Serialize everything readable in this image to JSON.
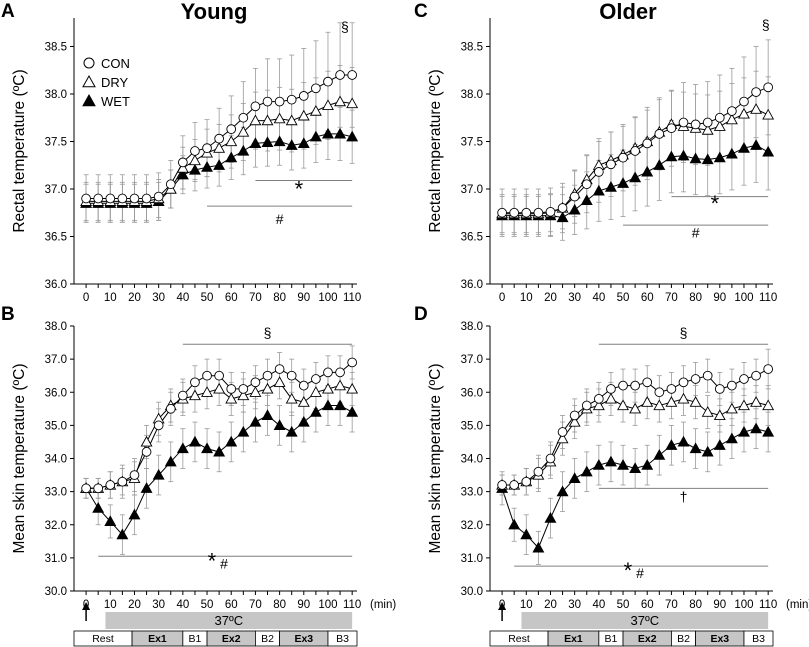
{
  "chart_data": {
    "type": "line",
    "x": [
      0,
      5,
      10,
      15,
      20,
      25,
      30,
      35,
      40,
      45,
      50,
      55,
      60,
      65,
      70,
      75,
      80,
      85,
      90,
      95,
      100,
      105,
      110
    ],
    "x_unit": "(min)",
    "xlim": [
      -5,
      112
    ],
    "legend": [
      "CON",
      "DRY",
      "WET"
    ],
    "temp_bar_label": "37ºC",
    "phases": [
      {
        "label": "Rest",
        "bold": false
      },
      {
        "label": "Ex1",
        "bold": true
      },
      {
        "label": "B1",
        "bold": false
      },
      {
        "label": "Ex2",
        "bold": true
      },
      {
        "label": "B2",
        "bold": false
      },
      {
        "label": "Ex3",
        "bold": true
      },
      {
        "label": "B3",
        "bold": false
      }
    ],
    "columns": [
      {
        "title": "Young",
        "panels": [
          "A",
          "B"
        ]
      },
      {
        "title": "Older",
        "panels": [
          "C",
          "D"
        ]
      }
    ],
    "panels": [
      {
        "id": "A",
        "ylabel": "Rectal temperature (ºC)",
        "ylim": [
          36.0,
          38.8
        ],
        "yticks": [
          "36.0",
          "36.5",
          "37.0",
          "37.5",
          "38.0",
          "38.5"
        ],
        "yvals": [
          36.0,
          36.5,
          37.0,
          37.5,
          38.0,
          38.5
        ],
        "series": [
          {
            "name": "CON",
            "values": [
              36.9,
              36.9,
              36.9,
              36.9,
              36.9,
              36.9,
              36.92,
              37.05,
              37.28,
              37.4,
              37.43,
              37.53,
              37.63,
              37.75,
              37.87,
              37.92,
              37.92,
              37.94,
              37.98,
              38.06,
              38.13,
              38.2,
              38.2
            ],
            "err": [
              0.25,
              0.25,
              0.25,
              0.25,
              0.25,
              0.25,
              0.25,
              0.25,
              0.28,
              0.3,
              0.3,
              0.32,
              0.35,
              0.38,
              0.4,
              0.45,
              0.45,
              0.47,
              0.5,
              0.5,
              0.52,
              0.55,
              0.55
            ]
          },
          {
            "name": "DRY",
            "values": [
              36.87,
              36.87,
              36.87,
              36.87,
              36.87,
              36.87,
              36.9,
              37.0,
              37.22,
              37.3,
              37.38,
              37.43,
              37.5,
              37.6,
              37.72,
              37.72,
              37.74,
              37.72,
              37.77,
              37.82,
              37.88,
              37.92,
              37.9
            ],
            "err": [
              0.2,
              0.2,
              0.2,
              0.2,
              0.2,
              0.2,
              0.2,
              0.2,
              0.22,
              0.22,
              0.25,
              0.25,
              0.28,
              0.3,
              0.3,
              0.32,
              0.33,
              0.33,
              0.35,
              0.35,
              0.36,
              0.38,
              0.38
            ]
          },
          {
            "name": "WET",
            "values": [
              36.85,
              36.85,
              36.85,
              36.85,
              36.85,
              36.85,
              36.87,
              37.0,
              37.15,
              37.2,
              37.23,
              37.25,
              37.33,
              37.4,
              37.48,
              37.49,
              37.5,
              37.46,
              37.48,
              37.55,
              37.58,
              37.58,
              37.55
            ],
            "err": [
              0.2,
              0.2,
              0.2,
              0.2,
              0.2,
              0.2,
              0.2,
              0.2,
              0.2,
              0.22,
              0.22,
              0.22,
              0.23,
              0.25,
              0.25,
              0.25,
              0.25,
              0.26,
              0.26,
              0.27,
              0.27,
              0.28,
              0.28
            ]
          }
        ],
        "annotations": [
          {
            "text": "§",
            "x": 107,
            "y": 38.66,
            "size": "small"
          },
          {
            "text": "*",
            "x": 88,
            "y": 36.92,
            "size": "big"
          },
          {
            "text": "#",
            "x": 80,
            "y": 36.63,
            "size": "small"
          }
        ],
        "lines": [
          {
            "x1": 70,
            "x2": 110,
            "y": 37.09
          },
          {
            "x1": 50,
            "x2": 110,
            "y": 36.82
          }
        ],
        "show_legend": true
      },
      {
        "id": "B",
        "ylabel": "Mean skin temperature (ºC)",
        "ylim": [
          30.0,
          38.0
        ],
        "yticks": [
          "30.0",
          "31.0",
          "32.0",
          "33.0",
          "34.0",
          "35.0",
          "36.0",
          "37.0",
          "38.0"
        ],
        "yvals": [
          30,
          31,
          32,
          33,
          34,
          35,
          36,
          37,
          38
        ],
        "series": [
          {
            "name": "CON",
            "values": [
              33.1,
              33.1,
              33.2,
              33.3,
              33.5,
              34.2,
              35.0,
              35.5,
              35.9,
              36.3,
              36.5,
              36.5,
              36.1,
              36.1,
              36.3,
              36.5,
              36.7,
              36.5,
              36.2,
              36.4,
              36.6,
              36.6,
              36.9
            ],
            "err": [
              0.3,
              0.3,
              0.4,
              0.5,
              0.5,
              0.5,
              0.5,
              0.5,
              0.5,
              0.5,
              0.5,
              0.5,
              0.5,
              0.5,
              0.5,
              0.5,
              0.5,
              0.5,
              0.5,
              0.5,
              0.5,
              0.5,
              0.5
            ]
          },
          {
            "name": "DRY",
            "values": [
              33.1,
              33.1,
              33.2,
              33.3,
              33.4,
              34.5,
              35.2,
              35.6,
              35.8,
              35.9,
              36.0,
              36.1,
              35.8,
              35.9,
              36.0,
              36.1,
              36.3,
              35.8,
              35.7,
              36.0,
              36.1,
              36.2,
              36.1
            ],
            "err": [
              0.3,
              0.3,
              0.4,
              0.4,
              0.5,
              0.5,
              0.5,
              0.5,
              0.5,
              0.5,
              0.5,
              0.5,
              0.5,
              0.5,
              0.5,
              0.5,
              0.5,
              0.5,
              0.5,
              0.5,
              0.5,
              0.5,
              0.5
            ]
          },
          {
            "name": "WET",
            "values": [
              33.1,
              32.5,
              32.1,
              31.7,
              32.3,
              33.1,
              33.5,
              33.9,
              34.3,
              34.5,
              34.3,
              34.2,
              34.5,
              34.8,
              35.1,
              35.3,
              35.0,
              34.8,
              35.1,
              35.4,
              35.6,
              35.6,
              35.4
            ],
            "err": [
              0.3,
              0.5,
              0.5,
              0.6,
              0.6,
              0.6,
              0.6,
              0.6,
              0.6,
              0.6,
              0.6,
              0.6,
              0.6,
              0.6,
              0.6,
              0.6,
              0.6,
              0.6,
              0.6,
              0.6,
              0.6,
              0.6,
              0.6
            ]
          }
        ],
        "annotations": [
          {
            "text": "§",
            "x": 75,
            "y": 37.65,
            "size": "small"
          },
          {
            "text": "*",
            "x": 52,
            "y": 30.68,
            "size": "big"
          },
          {
            "text": "#",
            "x": 57,
            "y": 30.68,
            "size": "small"
          }
        ],
        "lines": [
          {
            "x1": 40,
            "x2": 110,
            "y": 37.45
          },
          {
            "x1": 5,
            "x2": 110,
            "y": 31.05
          }
        ],
        "show_legend": false
      },
      {
        "id": "C",
        "ylabel": "Rectal temperature (ºC)",
        "ylim": [
          36.0,
          38.8
        ],
        "yticks": [
          "36.0",
          "36.5",
          "37.0",
          "37.5",
          "38.0",
          "38.5"
        ],
        "yvals": [
          36.0,
          36.5,
          37.0,
          37.5,
          38.0,
          38.5
        ],
        "series": [
          {
            "name": "CON",
            "values": [
              36.75,
              36.75,
              36.75,
              36.75,
              36.76,
              36.8,
              36.92,
              37.05,
              37.18,
              37.26,
              37.33,
              37.4,
              37.48,
              37.58,
              37.64,
              37.7,
              37.68,
              37.7,
              37.75,
              37.82,
              37.92,
              38.02,
              38.07
            ],
            "err": [
              0.25,
              0.25,
              0.25,
              0.25,
              0.25,
              0.26,
              0.28,
              0.3,
              0.32,
              0.34,
              0.35,
              0.36,
              0.38,
              0.38,
              0.4,
              0.42,
              0.42,
              0.43,
              0.45,
              0.45,
              0.47,
              0.48,
              0.5
            ]
          },
          {
            "name": "DRY",
            "values": [
              36.74,
              36.74,
              36.74,
              36.74,
              36.75,
              36.8,
              36.95,
              37.1,
              37.25,
              37.3,
              37.36,
              37.43,
              37.5,
              37.6,
              37.68,
              37.66,
              37.64,
              37.62,
              37.66,
              37.73,
              37.79,
              37.84,
              37.78
            ],
            "err": [
              0.2,
              0.2,
              0.2,
              0.2,
              0.2,
              0.22,
              0.24,
              0.26,
              0.28,
              0.3,
              0.3,
              0.32,
              0.33,
              0.34,
              0.35,
              0.36,
              0.36,
              0.37,
              0.37,
              0.38,
              0.38,
              0.4,
              0.4
            ]
          },
          {
            "name": "WET",
            "values": [
              36.72,
              36.72,
              36.72,
              36.72,
              36.72,
              36.7,
              36.78,
              36.88,
              36.98,
              37.02,
              37.06,
              37.12,
              37.18,
              37.25,
              37.34,
              37.35,
              37.32,
              37.31,
              37.33,
              37.37,
              37.43,
              37.46,
              37.39
            ],
            "err": [
              0.2,
              0.2,
              0.2,
              0.2,
              0.22,
              0.24,
              0.26,
              0.3,
              0.32,
              0.34,
              0.35,
              0.35,
              0.36,
              0.37,
              0.38,
              0.38,
              0.38,
              0.38,
              0.38,
              0.38,
              0.39,
              0.39,
              0.4
            ]
          }
        ],
        "annotations": [
          {
            "text": "§",
            "x": 109,
            "y": 38.68,
            "size": "small"
          },
          {
            "text": "*",
            "x": 88,
            "y": 36.77,
            "size": "big"
          },
          {
            "text": "#",
            "x": 80,
            "y": 36.49,
            "size": "small"
          }
        ],
        "lines": [
          {
            "x1": 70,
            "x2": 110,
            "y": 36.92
          },
          {
            "x1": 50,
            "x2": 110,
            "y": 36.62
          }
        ],
        "show_legend": false
      },
      {
        "id": "D",
        "ylabel": "Mean skin temperature (ºC)",
        "ylim": [
          30.0,
          38.0
        ],
        "yticks": [
          "30.0",
          "31.0",
          "32.0",
          "33.0",
          "34.0",
          "35.0",
          "36.0",
          "37.0",
          "38.0"
        ],
        "yvals": [
          30,
          31,
          32,
          33,
          34,
          35,
          36,
          37,
          38
        ],
        "series": [
          {
            "name": "CON",
            "values": [
              33.2,
              33.2,
              33.3,
              33.6,
              34.0,
              34.8,
              35.3,
              35.6,
              35.8,
              36.1,
              36.2,
              36.2,
              36.3,
              36.0,
              36.1,
              36.3,
              36.4,
              36.5,
              36.1,
              36.2,
              36.4,
              36.5,
              36.7
            ],
            "err": [
              0.3,
              0.3,
              0.4,
              0.5,
              0.5,
              0.5,
              0.5,
              0.5,
              0.5,
              0.5,
              0.5,
              0.5,
              0.5,
              0.5,
              0.5,
              0.5,
              0.5,
              0.5,
              0.5,
              0.5,
              0.5,
              0.5,
              0.6
            ]
          },
          {
            "name": "DRY",
            "values": [
              33.2,
              33.2,
              33.3,
              33.5,
              33.9,
              34.6,
              35.1,
              35.5,
              35.6,
              35.8,
              35.6,
              35.5,
              35.7,
              35.6,
              35.7,
              35.8,
              35.7,
              35.4,
              35.3,
              35.5,
              35.6,
              35.7,
              35.6
            ],
            "err": [
              0.3,
              0.3,
              0.4,
              0.5,
              0.5,
              0.5,
              0.5,
              0.5,
              0.5,
              0.5,
              0.5,
              0.5,
              0.5,
              0.5,
              0.5,
              0.5,
              0.5,
              0.5,
              0.5,
              0.5,
              0.5,
              0.5,
              0.6
            ]
          },
          {
            "name": "WET",
            "values": [
              33.1,
              32.0,
              31.7,
              31.3,
              32.2,
              33.0,
              33.4,
              33.6,
              33.8,
              33.9,
              33.8,
              33.7,
              33.8,
              34.1,
              34.4,
              34.5,
              34.3,
              34.2,
              34.4,
              34.6,
              34.8,
              34.9,
              34.8
            ],
            "err": [
              0.5,
              0.5,
              0.6,
              0.5,
              0.6,
              0.6,
              0.6,
              0.6,
              0.6,
              0.6,
              0.6,
              0.6,
              0.6,
              0.6,
              0.6,
              0.6,
              0.6,
              0.6,
              0.6,
              0.6,
              0.6,
              0.6,
              0.6
            ]
          }
        ],
        "annotations": [
          {
            "text": "§",
            "x": 75,
            "y": 37.65,
            "size": "small"
          },
          {
            "text": "†",
            "x": 75,
            "y": 32.7,
            "size": "small"
          },
          {
            "text": "*",
            "x": 52,
            "y": 30.4,
            "size": "big"
          },
          {
            "text": "#",
            "x": 57,
            "y": 30.4,
            "size": "small"
          }
        ],
        "lines": [
          {
            "x1": 40,
            "x2": 110,
            "y": 37.45
          },
          {
            "x1": 40,
            "x2": 110,
            "y": 33.1
          },
          {
            "x1": 5,
            "x2": 110,
            "y": 30.75
          }
        ],
        "show_legend": false
      }
    ]
  }
}
